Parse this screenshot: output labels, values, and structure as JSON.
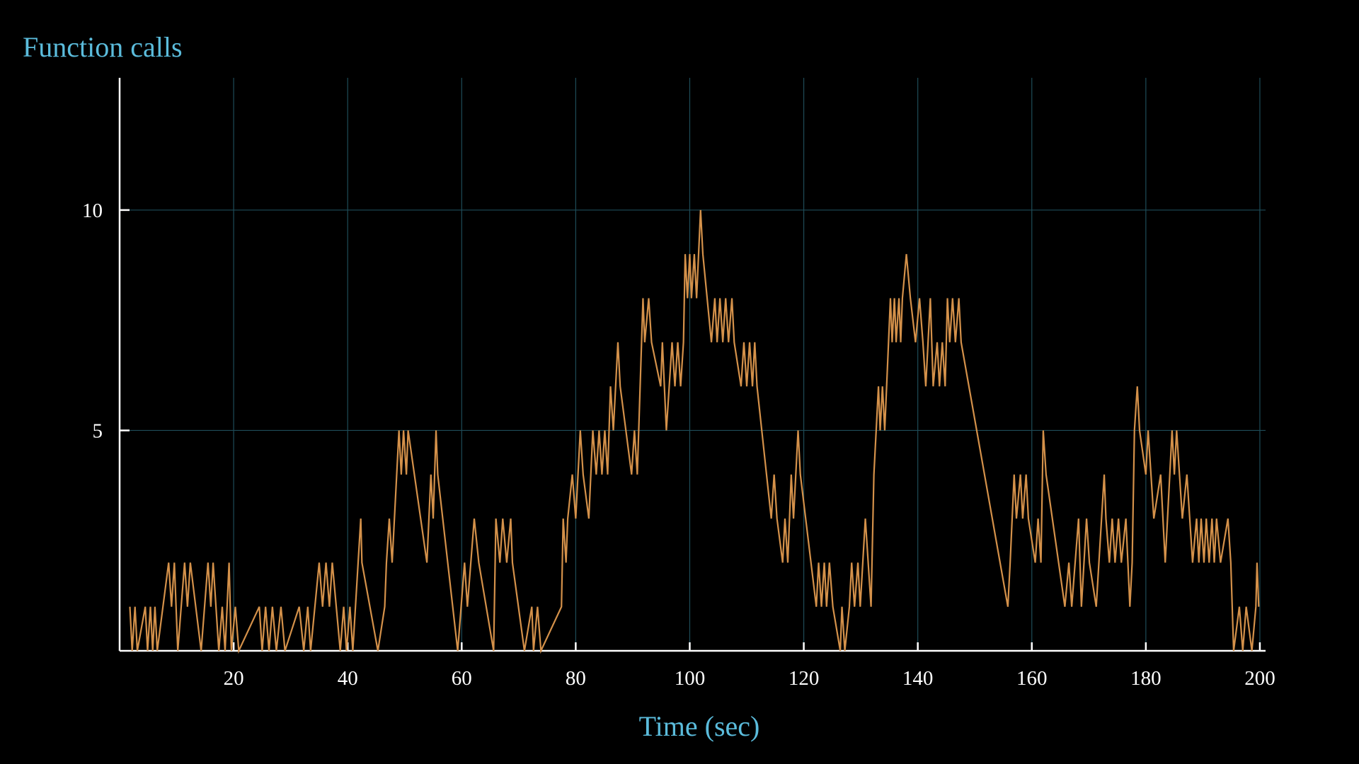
{
  "chart_data": {
    "type": "line",
    "title": "Function calls",
    "x_label": "Time (sec)",
    "xlim": [
      0,
      201
    ],
    "ylim": [
      0,
      13
    ],
    "xticks": [
      20,
      40,
      60,
      80,
      100,
      120,
      140,
      160,
      180,
      200
    ],
    "yticks": [
      5,
      10
    ],
    "grid": true,
    "series": [
      {
        "color": "#d4914a",
        "x": [
          1.8,
          2.2,
          2.7,
          3.1,
          4.5,
          4.9,
          5.4,
          5.8,
          6.2,
          6.6,
          8.6,
          9.1,
          9.6,
          10.2,
          11.4,
          11.9,
          12.4,
          14.3,
          15.5,
          16,
          16.4,
          17.4,
          18,
          18.5,
          19.2,
          19.6,
          20.3,
          20.9,
          24.5,
          25,
          25.6,
          26.2,
          26.8,
          27.5,
          28.3,
          29,
          31.5,
          32.3,
          33,
          33.5,
          35,
          35.6,
          36.2,
          36.8,
          37.3,
          38.7,
          39.3,
          39.8,
          40.4,
          40.9,
          42.3,
          42.5,
          45.3,
          46.5,
          46.8,
          47.3,
          47.8,
          49,
          49.4,
          49.8,
          50.3,
          50.6,
          53.9,
          54.6,
          55,
          55.5,
          55.8,
          59.3,
          60.5,
          61,
          62.2,
          63,
          65.6,
          66,
          66.7,
          67.2,
          67.9,
          68.6,
          68.9,
          71,
          72.3,
          72.6,
          73.3,
          73.9,
          77.5,
          77.8,
          78.3,
          78.6,
          79.4,
          80,
          80.8,
          81.3,
          82.3,
          83,
          83.6,
          84.1,
          84.6,
          85.1,
          85.6,
          86.1,
          86.6,
          87.4,
          87.8,
          89.8,
          90.3,
          90.8,
          91.8,
          92.1,
          92.8,
          93.3,
          94.9,
          95.2,
          95.9,
          96.9,
          97.4,
          97.9,
          98.4,
          98.9,
          99.2,
          99.6,
          100,
          100.3,
          100.8,
          101.2,
          101.9,
          102.3,
          103.8,
          104.4,
          104.8,
          105.3,
          105.8,
          106.3,
          106.8,
          107.4,
          107.8,
          109,
          109.5,
          110,
          110.5,
          111,
          111.4,
          111.8,
          114.3,
          114.8,
          115.3,
          116.3,
          116.7,
          117.2,
          117.8,
          118.2,
          119,
          119.4,
          122.2,
          122.6,
          123.1,
          123.6,
          124,
          124.5,
          125.1,
          126.4,
          126.7,
          127.2,
          128,
          128.4,
          128.9,
          129.5,
          129.9,
          130.8,
          131.8,
          132.3,
          133.1,
          133.4,
          133.8,
          134.2,
          135.2,
          135.5,
          135.9,
          136.2,
          136.7,
          137,
          137.3,
          138,
          138.7,
          139.6,
          140.3,
          140.9,
          141.4,
          142.2,
          142.7,
          143.4,
          143.8,
          144.3,
          144.8,
          145.2,
          145.6,
          146.1,
          146.6,
          147.2,
          147.6,
          155.8,
          156.2,
          156.9,
          157.3,
          158,
          158.4,
          159,
          159.4,
          160.6,
          161.1,
          161.6,
          162,
          162.5,
          165.8,
          166.5,
          167,
          168.2,
          168.7,
          169.6,
          170.1,
          171.3,
          172.7,
          173,
          173.6,
          174.1,
          174.6,
          175.2,
          175.7,
          176.5,
          177.2,
          177.6,
          178,
          178.5,
          178.9,
          180,
          180.4,
          181.4,
          182.6,
          183.4,
          184.6,
          185,
          185.4,
          185.9,
          186.4,
          187.2,
          187.7,
          188.2,
          188.9,
          189.3,
          189.7,
          190.2,
          190.6,
          191.1,
          191.6,
          192,
          192.4,
          193.1,
          194.4,
          194.9,
          195.4,
          196.4,
          197,
          197.6,
          198.6,
          199.3,
          199.5,
          199.8
        ],
        "values": [
          1,
          0,
          1,
          0,
          1,
          0,
          1,
          0,
          1,
          0,
          2,
          1,
          2,
          0,
          2,
          1,
          2,
          0,
          2,
          1,
          2,
          0,
          1,
          0,
          2,
          0,
          1,
          0,
          1,
          0,
          1,
          0,
          1,
          0,
          1,
          0,
          1,
          0,
          1,
          0,
          2,
          1,
          2,
          1,
          2,
          0,
          1,
          0,
          1,
          0,
          3,
          2,
          0,
          1,
          2,
          3,
          2,
          5,
          4,
          5,
          4,
          5,
          2,
          4,
          3,
          5,
          4,
          0,
          2,
          1,
          3,
          2,
          0,
          3,
          2,
          3,
          2,
          3,
          2,
          0,
          1,
          0,
          1,
          0,
          1,
          3,
          2,
          3,
          4,
          3,
          5,
          4,
          3,
          5,
          4,
          5,
          4,
          5,
          4,
          6,
          5,
          7,
          6,
          4,
          5,
          4,
          8,
          7,
          8,
          7,
          6,
          7,
          5,
          7,
          6,
          7,
          6,
          7,
          9,
          8,
          9,
          8,
          9,
          8,
          10,
          9,
          7,
          8,
          7,
          8,
          7,
          8,
          7,
          8,
          7,
          6,
          7,
          6,
          7,
          6,
          7,
          6,
          3,
          4,
          3,
          2,
          3,
          2,
          4,
          3,
          5,
          4,
          1,
          2,
          1,
          2,
          1,
          2,
          1,
          0,
          1,
          0,
          1,
          2,
          1,
          2,
          1,
          3,
          1,
          4,
          6,
          5,
          6,
          5,
          8,
          7,
          8,
          7,
          8,
          7,
          8,
          9,
          8,
          7,
          8,
          7,
          6,
          8,
          6,
          7,
          6,
          7,
          6,
          8,
          7,
          8,
          7,
          8,
          7,
          1,
          2,
          4,
          3,
          4,
          3,
          4,
          3,
          2,
          3,
          2,
          5,
          4,
          1,
          2,
          1,
          3,
          1,
          3,
          2,
          1,
          4,
          3,
          2,
          3,
          2,
          3,
          2,
          3,
          1,
          2,
          5,
          6,
          5,
          4,
          5,
          3,
          4,
          2,
          5,
          4,
          5,
          4,
          3,
          4,
          3,
          2,
          3,
          2,
          3,
          2,
          3,
          2,
          3,
          2,
          3,
          2,
          3,
          2,
          0,
          1,
          0,
          1,
          0,
          1,
          2,
          1
        ]
      }
    ]
  }
}
